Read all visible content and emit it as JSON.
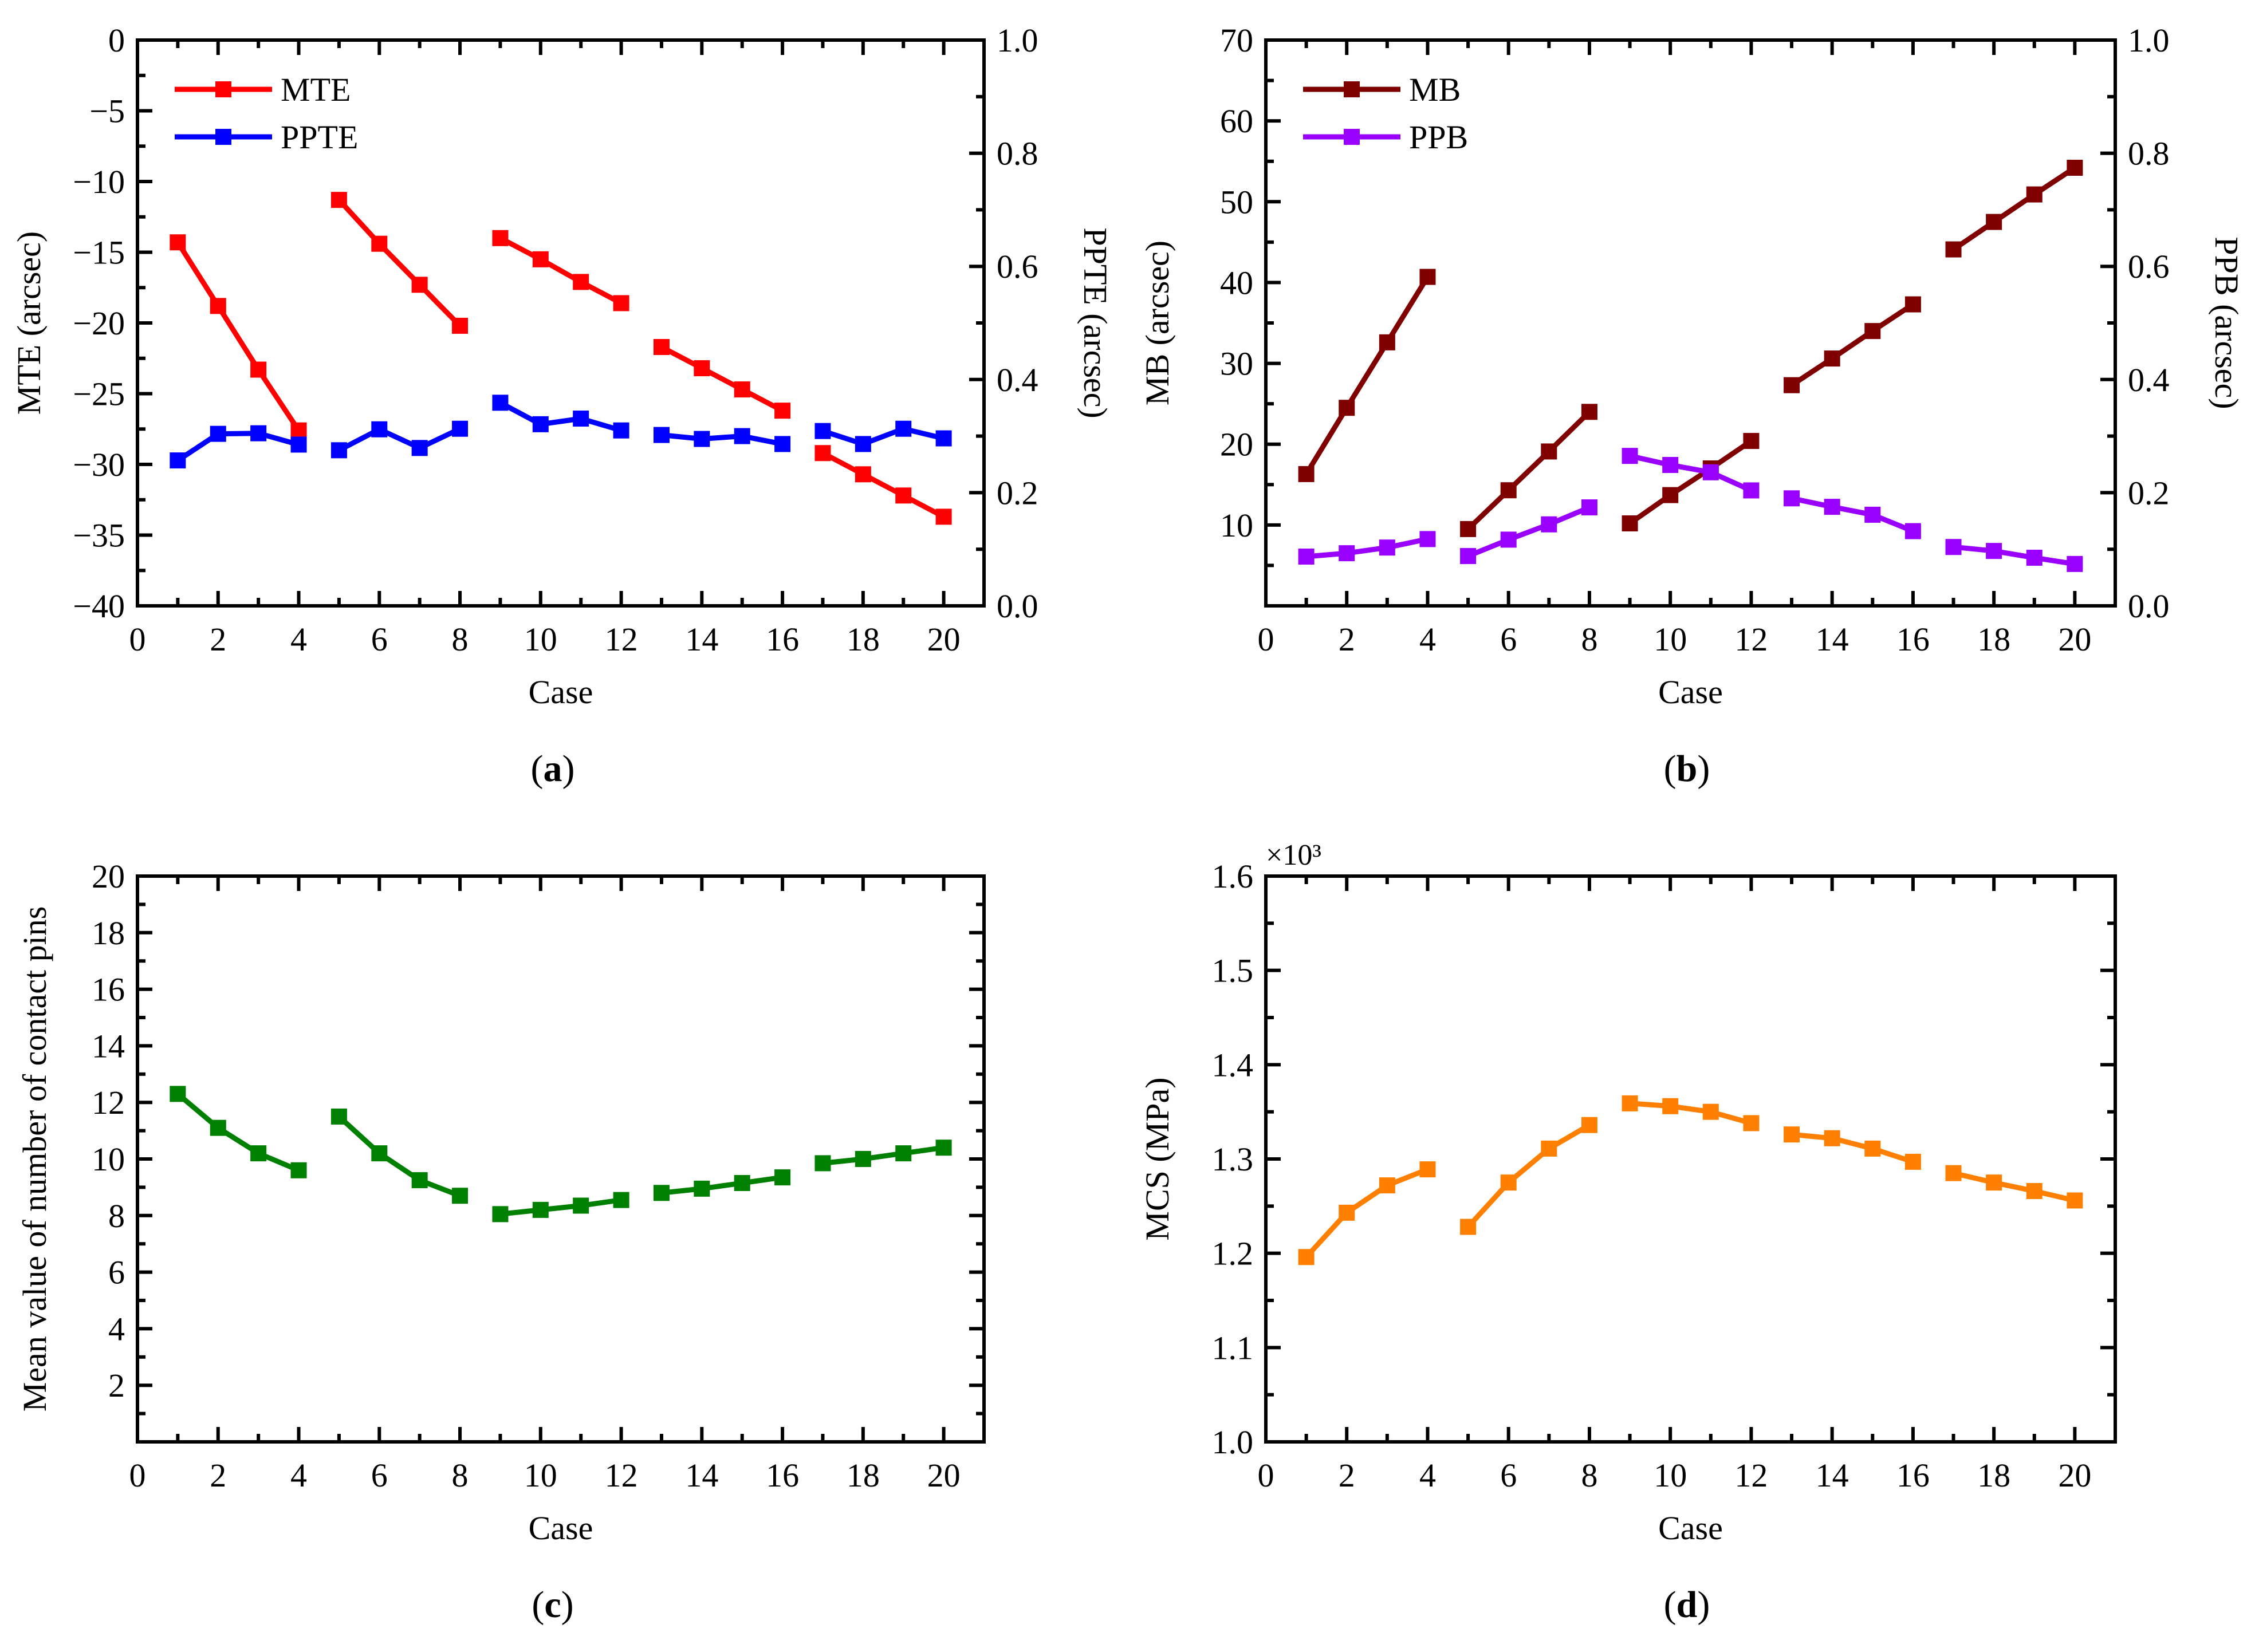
{
  "panels": [
    {
      "label": "a",
      "xlabel": "Case",
      "ylabel": "MTE (arcsec)",
      "y2label": "PPTE (arcsec)"
    },
    {
      "label": "b",
      "xlabel": "Case",
      "ylabel": "MB (arcsec)",
      "y2label": "PPB (arcsec)"
    },
    {
      "label": "c",
      "xlabel": "Case",
      "ylabel": "Mean value of number of contact pins"
    },
    {
      "label": "d",
      "xlabel": "Case",
      "ylabel": "MCS (MPa)",
      "yscale_note": "×10³"
    }
  ],
  "chart_data": [
    {
      "type": "line",
      "panel": "a",
      "xlabel": "Case",
      "ylabel": "MTE (arcsec)",
      "y2label": "PPTE (arcsec)",
      "xlim": [
        0,
        21
      ],
      "xticks": [
        0,
        2,
        4,
        6,
        8,
        10,
        12,
        14,
        16,
        18,
        20
      ],
      "ylim": [
        -40,
        0
      ],
      "yticks": [
        -40,
        -35,
        -30,
        -25,
        -20,
        -15,
        -10,
        -5,
        0
      ],
      "yticklabels": [
        "−40",
        "−35",
        "−30",
        "−25",
        "−20",
        "−15",
        "−10",
        "−5",
        "0"
      ],
      "y2lim": [
        0.0,
        1.0
      ],
      "y2ticks": [
        0.0,
        0.2,
        0.4,
        0.6,
        0.8,
        1.0
      ],
      "y2ticklabels": [
        "0.0",
        "0.2",
        "0.4",
        "0.6",
        "0.8",
        "1.0"
      ],
      "legend_position": "top-left",
      "series": [
        {
          "name": "MTE",
          "color": "#ff0000",
          "axis": "left",
          "segments": [
            [
              [
                1,
                -14.3
              ],
              [
                2,
                -18.8
              ],
              [
                3,
                -23.3
              ],
              [
                4,
                -27.6
              ]
            ],
            [
              [
                5,
                -11.3
              ],
              [
                6,
                -14.4
              ],
              [
                7,
                -17.3
              ],
              [
                8,
                -20.2
              ]
            ],
            [
              [
                9,
                -14.0
              ],
              [
                10,
                -15.5
              ],
              [
                11,
                -17.1
              ],
              [
                12,
                -18.6
              ]
            ],
            [
              [
                13,
                -21.7
              ],
              [
                14,
                -23.2
              ],
              [
                15,
                -24.7
              ],
              [
                16,
                -26.2
              ]
            ],
            [
              [
                17,
                -29.2
              ],
              [
                18,
                -30.7
              ],
              [
                19,
                -32.2
              ],
              [
                20,
                -33.7
              ]
            ]
          ]
        },
        {
          "name": "PPTE",
          "color": "#0000ff",
          "axis": "right",
          "segments": [
            [
              [
                1,
                0.257
              ],
              [
                2,
                0.304
              ],
              [
                3,
                0.305
              ],
              [
                4,
                0.285
              ]
            ],
            [
              [
                5,
                0.275
              ],
              [
                6,
                0.312
              ],
              [
                7,
                0.279
              ],
              [
                8,
                0.313
              ]
            ],
            [
              [
                9,
                0.359
              ],
              [
                10,
                0.321
              ],
              [
                11,
                0.331
              ],
              [
                12,
                0.31
              ]
            ],
            [
              [
                13,
                0.302
              ],
              [
                14,
                0.295
              ],
              [
                15,
                0.3
              ],
              [
                16,
                0.286
              ]
            ],
            [
              [
                17,
                0.309
              ],
              [
                18,
                0.286
              ],
              [
                19,
                0.313
              ],
              [
                20,
                0.296
              ]
            ]
          ]
        }
      ]
    },
    {
      "type": "line",
      "panel": "b",
      "xlabel": "Case",
      "ylabel": "MB (arcsec)",
      "y2label": "PPB (arcsec)",
      "xlim": [
        0,
        21
      ],
      "xticks": [
        0,
        2,
        4,
        6,
        8,
        10,
        12,
        14,
        16,
        18,
        20
      ],
      "ylim": [
        0,
        70
      ],
      "yticks": [
        10,
        20,
        30,
        40,
        50,
        60,
        70
      ],
      "yticklabels": [
        "10",
        "20",
        "30",
        "40",
        "50",
        "60",
        "70"
      ],
      "y2lim": [
        0.0,
        1.0
      ],
      "y2ticks": [
        0.0,
        0.2,
        0.4,
        0.6,
        0.8,
        1.0
      ],
      "y2ticklabels": [
        "0.0",
        "0.2",
        "0.4",
        "0.6",
        "0.8",
        "1.0"
      ],
      "legend_position": "top-left",
      "series": [
        {
          "name": "MB",
          "color": "#800000",
          "axis": "left",
          "segments": [
            [
              [
                1,
                16.3
              ],
              [
                2,
                24.5
              ],
              [
                3,
                32.6
              ],
              [
                4,
                40.7
              ]
            ],
            [
              [
                5,
                9.5
              ],
              [
                6,
                14.3
              ],
              [
                7,
                19.1
              ],
              [
                8,
                24.0
              ]
            ],
            [
              [
                9,
                10.2
              ],
              [
                10,
                13.7
              ],
              [
                11,
                17.0
              ],
              [
                12,
                20.4
              ]
            ],
            [
              [
                13,
                27.3
              ],
              [
                14,
                30.6
              ],
              [
                15,
                34.0
              ],
              [
                16,
                37.3
              ]
            ],
            [
              [
                17,
                44.1
              ],
              [
                18,
                47.5
              ],
              [
                19,
                50.9
              ],
              [
                20,
                54.2
              ]
            ]
          ]
        },
        {
          "name": "PPB",
          "color": "#9900ff",
          "axis": "right",
          "segments": [
            [
              [
                1,
                0.087
              ],
              [
                2,
                0.093
              ],
              [
                3,
                0.103
              ],
              [
                4,
                0.118
              ]
            ],
            [
              [
                5,
                0.088
              ],
              [
                6,
                0.117
              ],
              [
                7,
                0.144
              ],
              [
                8,
                0.174
              ]
            ],
            [
              [
                9,
                0.265
              ],
              [
                10,
                0.249
              ],
              [
                11,
                0.236
              ],
              [
                12,
                0.204
              ]
            ],
            [
              [
                13,
                0.19
              ],
              [
                14,
                0.175
              ],
              [
                15,
                0.161
              ],
              [
                16,
                0.132
              ]
            ],
            [
              [
                17,
                0.104
              ],
              [
                18,
                0.097
              ],
              [
                19,
                0.085
              ],
              [
                20,
                0.074
              ]
            ]
          ]
        }
      ]
    },
    {
      "type": "line",
      "panel": "c",
      "xlabel": "Case",
      "ylabel": "Mean value of number of contact pins",
      "xlim": [
        0,
        21
      ],
      "xticks": [
        0,
        2,
        4,
        6,
        8,
        10,
        12,
        14,
        16,
        18,
        20
      ],
      "ylim": [
        0,
        20
      ],
      "yticks": [
        2,
        4,
        6,
        8,
        10,
        12,
        14,
        16,
        18,
        20
      ],
      "yticklabels": [
        "2",
        "4",
        "6",
        "8",
        "10",
        "12",
        "14",
        "16",
        "18",
        "20"
      ],
      "series": [
        {
          "color": "#008000",
          "axis": "left",
          "segments": [
            [
              [
                1,
                12.3
              ],
              [
                2,
                11.1
              ],
              [
                3,
                10.2
              ],
              [
                4,
                9.6
              ]
            ],
            [
              [
                5,
                11.5
              ],
              [
                6,
                10.2
              ],
              [
                7,
                9.25
              ],
              [
                8,
                8.7
              ]
            ],
            [
              [
                9,
                8.05
              ],
              [
                10,
                8.2
              ],
              [
                11,
                8.35
              ],
              [
                12,
                8.55
              ]
            ],
            [
              [
                13,
                8.8
              ],
              [
                14,
                8.95
              ],
              [
                15,
                9.15
              ],
              [
                16,
                9.35
              ]
            ],
            [
              [
                17,
                9.85
              ],
              [
                18,
                10.0
              ],
              [
                19,
                10.2
              ],
              [
                20,
                10.4
              ]
            ]
          ]
        }
      ]
    },
    {
      "type": "line",
      "panel": "d",
      "xlabel": "Case",
      "ylabel": "MCS (MPa)",
      "xlim": [
        0,
        21
      ],
      "xticks": [
        0,
        2,
        4,
        6,
        8,
        10,
        12,
        14,
        16,
        18,
        20
      ],
      "ylim": [
        1.0,
        1.6
      ],
      "yticks": [
        1.0,
        1.1,
        1.2,
        1.3,
        1.4,
        1.5,
        1.6
      ],
      "yticklabels": [
        "1.0",
        "1.1",
        "1.2",
        "1.3",
        "1.4",
        "1.5",
        "1.6"
      ],
      "series": [
        {
          "color": "#ff8000",
          "axis": "left",
          "segments": [
            [
              [
                1,
                1.196
              ],
              [
                2,
                1.243
              ],
              [
                3,
                1.272
              ],
              [
                4,
                1.289
              ]
            ],
            [
              [
                5,
                1.228
              ],
              [
                6,
                1.275
              ],
              [
                7,
                1.311
              ],
              [
                8,
                1.336
              ]
            ],
            [
              [
                9,
                1.359
              ],
              [
                10,
                1.356
              ],
              [
                11,
                1.35
              ],
              [
                12,
                1.338
              ]
            ],
            [
              [
                13,
                1.326
              ],
              [
                14,
                1.322
              ],
              [
                15,
                1.311
              ],
              [
                16,
                1.297
              ]
            ],
            [
              [
                17,
                1.285
              ],
              [
                18,
                1.275
              ],
              [
                19,
                1.266
              ],
              [
                20,
                1.256
              ]
            ]
          ]
        }
      ]
    }
  ]
}
